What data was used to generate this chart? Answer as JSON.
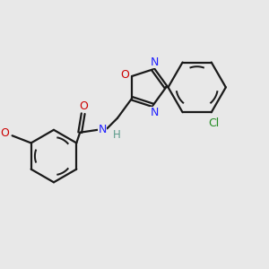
{
  "bg_color": "#e8e8e8",
  "bond_color": "#1a1a1a",
  "N_color": "#2020ff",
  "O_color": "#cc0000",
  "Cl_color": "#228B22",
  "H_color": "#5a9a8a",
  "line_width": 1.6,
  "figsize": [
    3.0,
    3.0
  ],
  "dpi": 100,
  "xlim": [
    0,
    10
  ],
  "ylim": [
    0,
    10
  ]
}
